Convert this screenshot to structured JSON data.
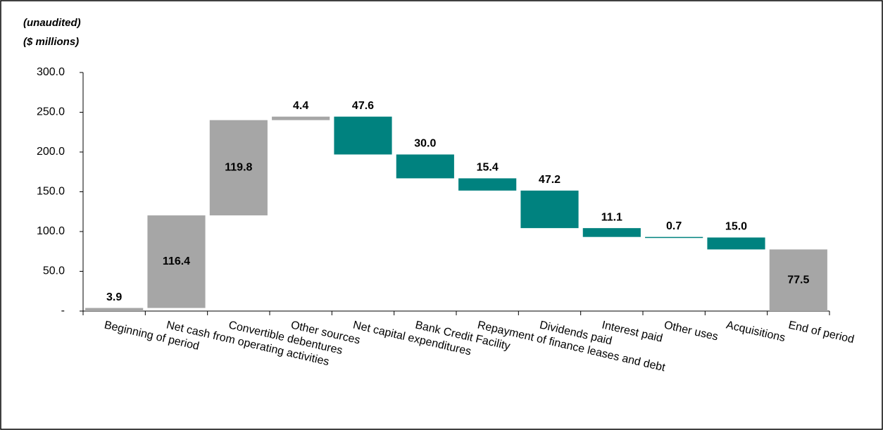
{
  "chart_data": {
    "type": "waterfall",
    "notes": [
      "(unaudited)",
      "($ millions)"
    ],
    "categories": [
      "Beginning of period",
      "Net cash from operating activities",
      "Convertible debentures",
      "Other sources",
      "Net capital expenditures",
      "Bank Credit Facility",
      "Repayment of finance leases and debt",
      "Dividends paid",
      "Interest paid",
      "Other uses",
      "Acquisitions",
      "End of period"
    ],
    "values": [
      3.9,
      116.4,
      119.8,
      4.4,
      -47.6,
      -30.0,
      -15.4,
      -47.2,
      -11.1,
      -0.7,
      -15.0,
      77.5
    ],
    "value_labels": [
      "3.9",
      "116.4",
      "119.8",
      "4.4",
      "47.6",
      "30.0",
      "15.4",
      "47.2",
      "11.1",
      "0.7",
      "15.0",
      "77.5"
    ],
    "is_total": [
      true,
      false,
      false,
      false,
      false,
      false,
      false,
      false,
      false,
      false,
      false,
      true
    ],
    "colors": [
      "#a6a6a6",
      "#a6a6a6",
      "#a6a6a6",
      "#a6a6a6",
      "#00827f",
      "#00827f",
      "#00827f",
      "#00827f",
      "#00827f",
      "#00827f",
      "#00827f",
      "#a6a6a6"
    ],
    "ylim": [
      0,
      300
    ],
    "yticks": [
      {
        "value": 0,
        "label": "-"
      },
      {
        "value": 50,
        "label": "50.0"
      },
      {
        "value": 100,
        "label": "100.0"
      },
      {
        "value": 150,
        "label": "150.0"
      },
      {
        "value": 200,
        "label": "200.0"
      },
      {
        "value": 250,
        "label": "250.0"
      },
      {
        "value": 300,
        "label": "300.0"
      }
    ]
  }
}
